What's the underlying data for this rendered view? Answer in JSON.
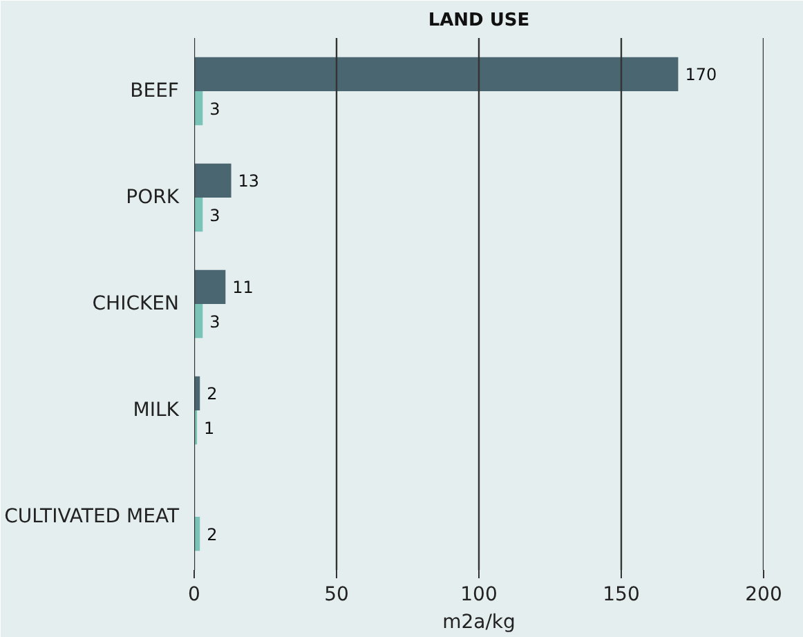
{
  "chart_data": {
    "type": "bar",
    "orientation": "horizontal",
    "title": "LAND USE",
    "xlabel": "m2a/kg",
    "categories": [
      "BEEF",
      "PORK",
      "CHICKEN",
      "MILK",
      "CULTIVATED MEAT"
    ],
    "series": [
      {
        "color": "#4a6671",
        "values": [
          170,
          13,
          11,
          2,
          null
        ]
      },
      {
        "color": "#79c3b9",
        "values": [
          3,
          3,
          3,
          1,
          2
        ]
      }
    ],
    "xlim": [
      0,
      200
    ],
    "xticks": [
      0,
      50,
      100,
      150,
      200
    ],
    "grid": "x",
    "data_labels": true
  }
}
